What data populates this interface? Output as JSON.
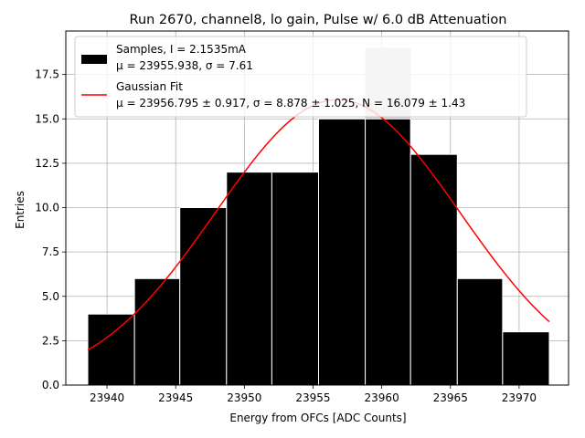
{
  "chart_data": {
    "type": "bar",
    "title": "Run 2670, channel8, lo gain, Pulse w/ 6.0 dB Attenuation",
    "xlabel": "Energy from OFCs [ADC Counts]",
    "ylabel": "Entries",
    "xlim": [
      23937.0,
      23973.6
    ],
    "ylim": [
      0,
      19.95
    ],
    "grid": true,
    "legend_position": "top-left",
    "xticks": [
      23940,
      23945,
      23950,
      23955,
      23960,
      23965,
      23970
    ],
    "xtick_labels": [
      "23940",
      "23945",
      "23950",
      "23955",
      "23960",
      "23965",
      "23970"
    ],
    "yticks": [
      0,
      2.5,
      5,
      7.5,
      10,
      12.5,
      15,
      17.5
    ],
    "ytick_labels": [
      "0.0",
      "2.5",
      "5.0",
      "7.5",
      "10.0",
      "12.5",
      "15.0",
      "17.5"
    ],
    "bins": [
      {
        "x0": 23938.6,
        "x1": 23942.0,
        "value": 4
      },
      {
        "x0": 23942.0,
        "x1": 23945.3,
        "value": 6
      },
      {
        "x0": 23945.3,
        "x1": 23948.7,
        "value": 10
      },
      {
        "x0": 23948.7,
        "x1": 23952.0,
        "value": 12
      },
      {
        "x0": 23952.0,
        "x1": 23955.4,
        "value": 12
      },
      {
        "x0": 23955.4,
        "x1": 23958.8,
        "value": 15
      },
      {
        "x0": 23958.8,
        "x1": 23962.1,
        "value": 19
      },
      {
        "x0": 23962.1,
        "x1": 23965.5,
        "value": 13
      },
      {
        "x0": 23965.5,
        "x1": 23968.8,
        "value": 6
      },
      {
        "x0": 23968.8,
        "x1": 23972.2,
        "value": 3
      }
    ],
    "series": [
      {
        "name": "Samples, I = 2.1535mA",
        "type": "histogram",
        "color": "#000000"
      },
      {
        "name": "Gaussian Fit",
        "type": "line",
        "color": "#ff0000",
        "fit": {
          "mu": 23956.795,
          "sigma": 8.878,
          "N": 16.079
        },
        "x_range": [
          23938.6,
          23972.2
        ]
      }
    ],
    "highlight_bin": {
      "index": 6,
      "color": "#cccccc"
    },
    "legend": [
      {
        "line1": "Samples, I = 2.1535mA",
        "line2": "μ = 23955.938, σ = 7.61"
      },
      {
        "line1": "Gaussian Fit",
        "line2": "μ = 23956.795 ± 0.917, σ = 8.878 ± 1.025, N = 16.079 ± 1.43"
      }
    ]
  }
}
